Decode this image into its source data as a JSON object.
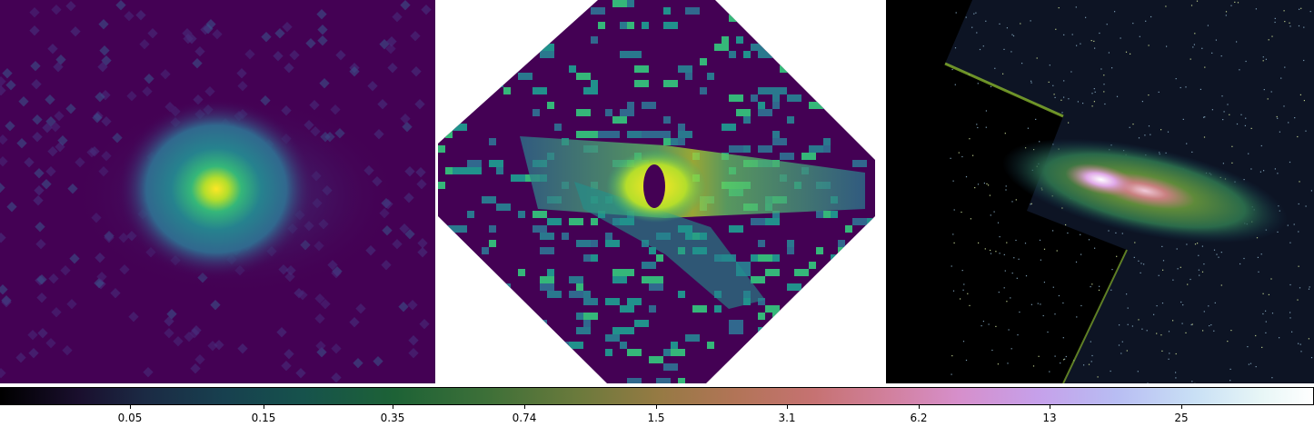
{
  "panels": [
    {
      "name": "smoothed-flux-map",
      "colormap": "viridis"
    },
    {
      "name": "masked-octagon-map",
      "colormap": "viridis"
    },
    {
      "name": "galaxy-optical-image",
      "colormap": "cubehelix"
    }
  ],
  "colorbar": {
    "tick_labels": [
      "0.05",
      "0.15",
      "0.35",
      "0.74",
      "1.5",
      "3.1",
      "6.2",
      "13",
      "25"
    ]
  },
  "colors": {
    "viridis_low": "#440154",
    "viridis_mid": "#21918c",
    "viridis_high": "#fde725",
    "background": "#ffffff"
  }
}
